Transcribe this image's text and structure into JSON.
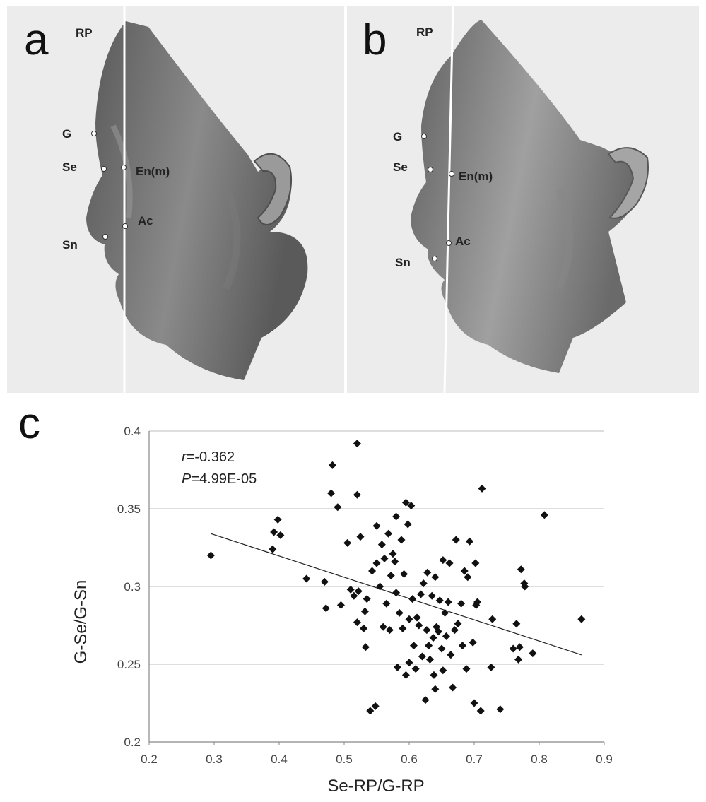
{
  "panels": {
    "a": {
      "letter": "a",
      "labels": {
        "rp": "RP",
        "g": "G",
        "se": "Se",
        "en": "En(m)",
        "ac": "Ac",
        "sn": "Sn"
      }
    },
    "b": {
      "letter": "b",
      "labels": {
        "rp": "RP",
        "g": "G",
        "se": "Se",
        "en": "En(m)",
        "ac": "Ac",
        "sn": "Sn"
      }
    },
    "c": {
      "letter": "c"
    }
  },
  "colors": {
    "panel_bg": "#ececec",
    "face": "#6e6e6e",
    "marker": "#111111",
    "grid": "#bdbdbd"
  },
  "chart_data": {
    "type": "scatter",
    "title": "",
    "xlabel": "Se-RP/G-RP",
    "ylabel": "G-Se/G-Sn",
    "xlim": [
      0.2,
      0.9
    ],
    "ylim": [
      0.2,
      0.4
    ],
    "xticks": [
      "0.2",
      "0.3",
      "0.4",
      "0.5",
      "0.6",
      "0.7",
      "0.8",
      "0.9"
    ],
    "yticks": [
      "0.2",
      "0.25",
      "0.3",
      "0.35",
      "0.4"
    ],
    "grid": "horizontal",
    "annotation_r": "=-0.362",
    "annotation_p": "=4.99E-05",
    "annotation_r_symbol": "r",
    "annotation_p_symbol": "P",
    "trendline": {
      "x": [
        0.295,
        0.865
      ],
      "y": [
        0.334,
        0.256
      ]
    },
    "points": [
      [
        0.295,
        0.32
      ],
      [
        0.39,
        0.324
      ],
      [
        0.392,
        0.335
      ],
      [
        0.398,
        0.343
      ],
      [
        0.402,
        0.333
      ],
      [
        0.442,
        0.305
      ],
      [
        0.47,
        0.303
      ],
      [
        0.472,
        0.286
      ],
      [
        0.48,
        0.36
      ],
      [
        0.482,
        0.378
      ],
      [
        0.49,
        0.351
      ],
      [
        0.495,
        0.288
      ],
      [
        0.505,
        0.328
      ],
      [
        0.51,
        0.298
      ],
      [
        0.515,
        0.294
      ],
      [
        0.52,
        0.359
      ],
      [
        0.52,
        0.392
      ],
      [
        0.52,
        0.277
      ],
      [
        0.522,
        0.297
      ],
      [
        0.525,
        0.332
      ],
      [
        0.53,
        0.273
      ],
      [
        0.532,
        0.284
      ],
      [
        0.533,
        0.261
      ],
      [
        0.535,
        0.292
      ],
      [
        0.54,
        0.22
      ],
      [
        0.543,
        0.31
      ],
      [
        0.548,
        0.223
      ],
      [
        0.55,
        0.339
      ],
      [
        0.55,
        0.315
      ],
      [
        0.555,
        0.3
      ],
      [
        0.558,
        0.327
      ],
      [
        0.56,
        0.274
      ],
      [
        0.562,
        0.318
      ],
      [
        0.565,
        0.289
      ],
      [
        0.568,
        0.334
      ],
      [
        0.57,
        0.272
      ],
      [
        0.572,
        0.307
      ],
      [
        0.575,
        0.321
      ],
      [
        0.578,
        0.316
      ],
      [
        0.58,
        0.345
      ],
      [
        0.58,
        0.296
      ],
      [
        0.582,
        0.248
      ],
      [
        0.585,
        0.283
      ],
      [
        0.588,
        0.33
      ],
      [
        0.59,
        0.273
      ],
      [
        0.592,
        0.308
      ],
      [
        0.595,
        0.354
      ],
      [
        0.595,
        0.243
      ],
      [
        0.598,
        0.34
      ],
      [
        0.6,
        0.279
      ],
      [
        0.6,
        0.251
      ],
      [
        0.603,
        0.352
      ],
      [
        0.605,
        0.292
      ],
      [
        0.607,
        0.262
      ],
      [
        0.61,
        0.247
      ],
      [
        0.612,
        0.28
      ],
      [
        0.615,
        0.275
      ],
      [
        0.618,
        0.295
      ],
      [
        0.62,
        0.255
      ],
      [
        0.622,
        0.302
      ],
      [
        0.625,
        0.227
      ],
      [
        0.627,
        0.272
      ],
      [
        0.628,
        0.309
      ],
      [
        0.63,
        0.262
      ],
      [
        0.632,
        0.253
      ],
      [
        0.635,
        0.294
      ],
      [
        0.637,
        0.267
      ],
      [
        0.638,
        0.243
      ],
      [
        0.64,
        0.306
      ],
      [
        0.64,
        0.234
      ],
      [
        0.642,
        0.274
      ],
      [
        0.645,
        0.271
      ],
      [
        0.647,
        0.291
      ],
      [
        0.65,
        0.26
      ],
      [
        0.652,
        0.317
      ],
      [
        0.652,
        0.246
      ],
      [
        0.655,
        0.283
      ],
      [
        0.657,
        0.268
      ],
      [
        0.66,
        0.29
      ],
      [
        0.662,
        0.315
      ],
      [
        0.664,
        0.256
      ],
      [
        0.667,
        0.235
      ],
      [
        0.67,
        0.272
      ],
      [
        0.672,
        0.33
      ],
      [
        0.675,
        0.276
      ],
      [
        0.68,
        0.289
      ],
      [
        0.682,
        0.262
      ],
      [
        0.685,
        0.31
      ],
      [
        0.688,
        0.247
      ],
      [
        0.69,
        0.306
      ],
      [
        0.693,
        0.329
      ],
      [
        0.698,
        0.264
      ],
      [
        0.7,
        0.225
      ],
      [
        0.702,
        0.315
      ],
      [
        0.703,
        0.288
      ],
      [
        0.705,
        0.29
      ],
      [
        0.71,
        0.22
      ],
      [
        0.712,
        0.363
      ],
      [
        0.726,
        0.248
      ],
      [
        0.728,
        0.279
      ],
      [
        0.74,
        0.221
      ],
      [
        0.76,
        0.26
      ],
      [
        0.765,
        0.276
      ],
      [
        0.768,
        0.253
      ],
      [
        0.77,
        0.261
      ],
      [
        0.772,
        0.311
      ],
      [
        0.777,
        0.302
      ],
      [
        0.778,
        0.3
      ],
      [
        0.79,
        0.257
      ],
      [
        0.808,
        0.346
      ],
      [
        0.865,
        0.279
      ]
    ]
  }
}
